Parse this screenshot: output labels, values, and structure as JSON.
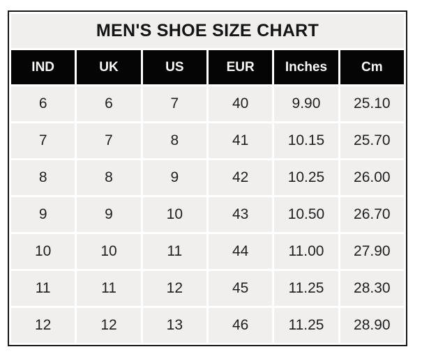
{
  "chart_data": {
    "type": "table",
    "title": "MEN'S SHOE SIZE CHART",
    "columns": [
      "IND",
      "UK",
      "US",
      "EUR",
      "Inches",
      "Cm"
    ],
    "rows": [
      [
        "6",
        "6",
        "7",
        "40",
        "9.90",
        "25.10"
      ],
      [
        "7",
        "7",
        "8",
        "41",
        "10.15",
        "25.70"
      ],
      [
        "8",
        "8",
        "9",
        "42",
        "10.25",
        "26.00"
      ],
      [
        "9",
        "9",
        "10",
        "43",
        "10.50",
        "26.70"
      ],
      [
        "10",
        "10",
        "11",
        "44",
        "11.00",
        "27.90"
      ],
      [
        "11",
        "11",
        "12",
        "45",
        "11.25",
        "28.30"
      ],
      [
        "12",
        "12",
        "13",
        "46",
        "11.25",
        "28.90"
      ]
    ],
    "layout": {
      "legend": "none",
      "grid": "white gridlines between gray cells",
      "header_style": "black background, white bold text",
      "title_position": "top row spanning all columns"
    }
  },
  "colors": {
    "cell_background": "#f0efee",
    "header_background": "#050505",
    "header_text": "#faf9f7",
    "body_text": "#1f1f1f",
    "outer_border": "#161616",
    "grid_gap": "#ffffff",
    "page_background": "#ffffff"
  }
}
